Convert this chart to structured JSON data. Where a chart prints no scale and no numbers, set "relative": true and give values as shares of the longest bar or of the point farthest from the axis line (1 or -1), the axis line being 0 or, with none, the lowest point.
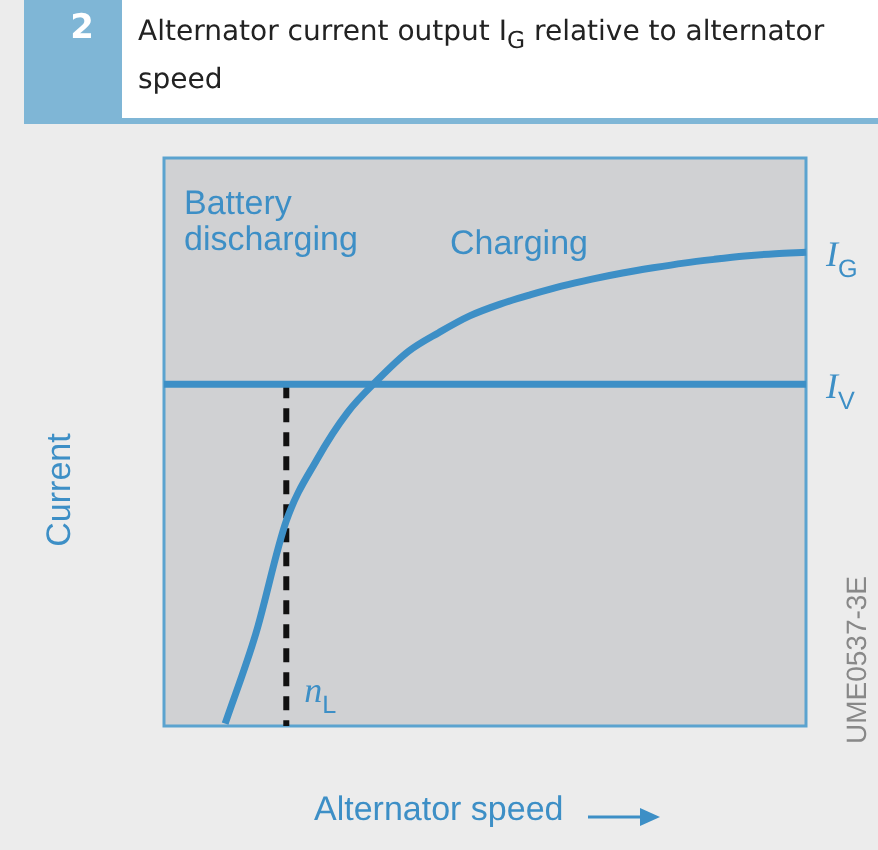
{
  "chart_data": {
    "type": "line",
    "relative": true,
    "title": "Alternator current output I$_{G}$ relative to alternator speed",
    "xlabel": "Alternator speed",
    "ylabel": "Current",
    "categories": [
      null,
      null,
      null,
      null,
      null,
      null,
      null,
      null,
      null,
      null,
      null,
      null,
      null,
      null,
      null,
      null,
      null,
      null,
      null,
      null,
      null,
      null
    ],
    "series": [
      {
        "name": "I$_{G}$",
        "color": "#3d8fc6",
        "values": [
          null,
          null,
          0,
          0.19,
          0.43,
          0.56,
          0.66,
          0.73,
          0.79,
          0.83,
          0.865,
          0.89,
          0.91,
          0.928,
          0.943,
          0.956,
          0.967,
          0.977,
          0.985,
          0.992,
          0.997,
          1
        ]
      },
      {
        "name": "I$_{V}$",
        "color": "#3d8fc6",
        "values": [
          0.72,
          0.72,
          0.72,
          0.72,
          0.72,
          0.72,
          0.72,
          0.72,
          0.72,
          0.72,
          0.72,
          0.72,
          0.72,
          0.72,
          0.72,
          0.72,
          0.72,
          0.72,
          0.72,
          0.72,
          0.72,
          0.72
        ]
      }
    ],
    "annotations": [
      "2",
      "Battery discharging",
      "Charging",
      "UME0537-3E",
      "n$_{L}$"
    ],
    "legend": false,
    "marker": "none",
    "line_style": "solid"
  }
}
